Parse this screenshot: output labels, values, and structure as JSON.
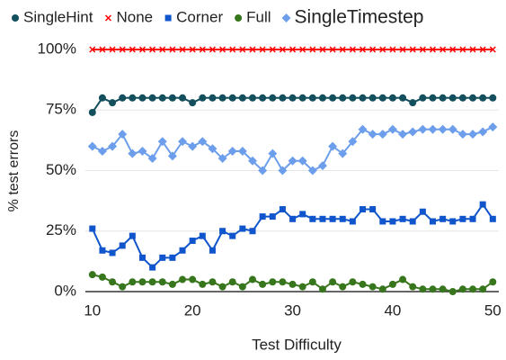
{
  "chart_data": {
    "type": "line",
    "xlabel": "Test Difficulty",
    "ylabel": "% test errors",
    "x": [
      10,
      11,
      12,
      13,
      14,
      15,
      16,
      17,
      18,
      19,
      20,
      21,
      22,
      23,
      24,
      25,
      26,
      27,
      28,
      29,
      30,
      31,
      32,
      33,
      34,
      35,
      36,
      37,
      38,
      39,
      40,
      41,
      42,
      43,
      44,
      45,
      46,
      47,
      48,
      49,
      50
    ],
    "xlim": [
      9.3,
      50.6
    ],
    "xticks": [
      10,
      20,
      30,
      40,
      50
    ],
    "ylim": [
      0,
      100
    ],
    "yticks": [
      {
        "value": 0,
        "label": "0%"
      },
      {
        "value": 25,
        "label": "25%"
      },
      {
        "value": 50,
        "label": "50%"
      },
      {
        "value": 75,
        "label": "75%"
      },
      {
        "value": 100,
        "label": "100%"
      }
    ],
    "grid": true,
    "legend": "top",
    "series": [
      {
        "name": "SingleHint",
        "color": "#134f5c",
        "marker": "circle",
        "values": [
          74,
          80,
          78,
          80,
          80,
          80,
          80,
          80,
          80,
          80,
          78,
          80,
          80,
          80,
          80,
          80,
          80,
          80,
          80,
          80,
          80,
          80,
          80,
          80,
          80,
          80,
          80,
          80,
          80,
          80,
          80,
          80,
          78,
          80,
          80,
          80,
          80,
          80,
          80,
          80,
          80
        ]
      },
      {
        "name": "None",
        "color": "#ff0000",
        "marker": "x",
        "values": [
          100,
          100,
          100,
          100,
          100,
          100,
          100,
          100,
          100,
          100,
          100,
          100,
          100,
          100,
          100,
          100,
          100,
          100,
          100,
          100,
          100,
          100,
          100,
          100,
          100,
          100,
          100,
          100,
          100,
          100,
          100,
          100,
          100,
          100,
          100,
          100,
          100,
          100,
          100,
          100,
          100
        ]
      },
      {
        "name": "Corner",
        "color": "#1155cc",
        "marker": "square",
        "values": [
          26,
          17,
          16,
          19,
          23,
          14,
          10,
          14,
          14,
          17,
          21,
          23,
          17,
          25,
          23,
          26,
          25,
          31,
          31,
          34,
          30,
          32,
          30,
          30,
          30,
          30,
          29,
          34,
          34,
          29,
          29,
          30,
          29,
          33,
          29,
          30,
          29,
          30,
          30,
          36,
          30
        ]
      },
      {
        "name": "Full",
        "color": "#38761d",
        "marker": "circle",
        "values": [
          7,
          6,
          4,
          2,
          4,
          4,
          4,
          4,
          3,
          5,
          5,
          3,
          4,
          2,
          4,
          2,
          5,
          3,
          4,
          4,
          3,
          2,
          4,
          1,
          4,
          2,
          4,
          3,
          2,
          1,
          3,
          5,
          2,
          1,
          1,
          1,
          0,
          1,
          1,
          1,
          4
        ]
      },
      {
        "name": "SingleTimestep",
        "color": "#6d9eeb",
        "marker": "diamond",
        "values": [
          60,
          58,
          60,
          65,
          57,
          58,
          55,
          62,
          56,
          62,
          60,
          62,
          59,
          55,
          58,
          58,
          54,
          50,
          57,
          50,
          54,
          54,
          50,
          52,
          60,
          57,
          62,
          67,
          65,
          65,
          67,
          65,
          66,
          67,
          67,
          67,
          67,
          65,
          65,
          66,
          68
        ]
      }
    ]
  }
}
